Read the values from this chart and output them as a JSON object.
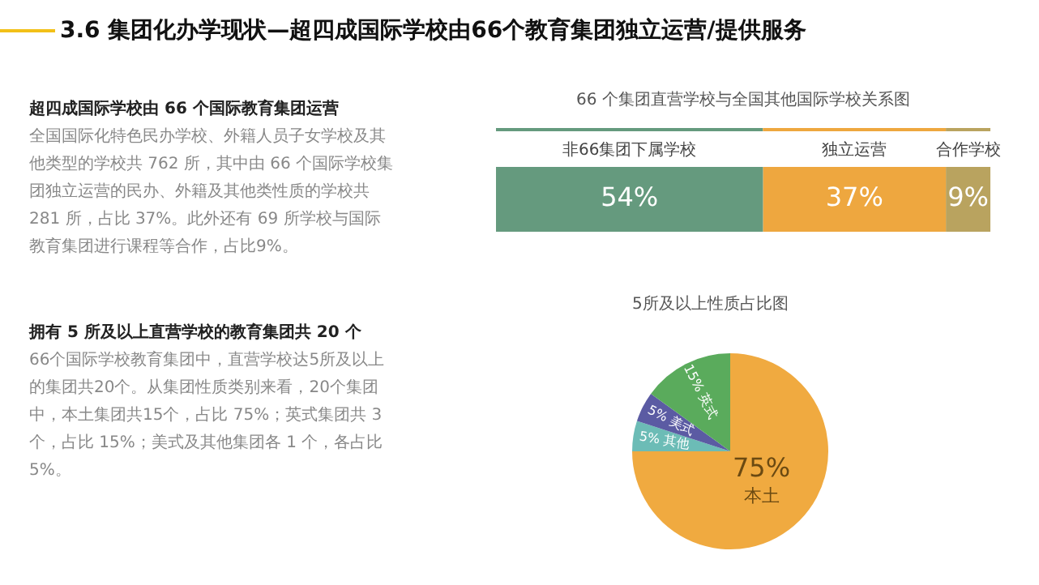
{
  "chart_data": [
    {
      "type": "other",
      "title": "3.6 集团化办学现状—超四成国际学校由66个教育集团独立运营/提供服务"
    },
    {
      "type": "other",
      "title": "超四成国际学校由 66 个国际教育集团运营",
      "annotations": [
        "全国国际化特色民办学校、外籍人员子女学校及其他类型的学校共 762 所，其中由 66 个国际学校集团独立运营的民办、外籍及其他类性质的学校共 281 所，占比 37%。此外还有 69 所学校与国际教育集团进行课程等合作，占比9%。"
      ]
    },
    {
      "type": "bar",
      "title": "66 个集团直营学校与全国其他国际学校关系图",
      "orientation": "horizontal",
      "stacked": true,
      "tick_labels": false,
      "legend": "top",
      "categories": [
        null
      ],
      "series": [
        {
          "name": "非66集团下属学校",
          "color": "#659a7e",
          "values": [
            54
          ],
          "value_labels": [
            "54%"
          ]
        },
        {
          "name": "独立运营",
          "color": "#eea73f",
          "values": [
            37
          ],
          "value_labels": [
            "37%"
          ]
        },
        {
          "name": "合作学校",
          "color": "#b9a35f",
          "values": [
            9
          ],
          "value_labels": [
            "9%"
          ]
        }
      ]
    },
    {
      "type": "other",
      "title": "拥有 5 所及以上直营学校的教育集团共 20 个",
      "annotations": [
        "66个国际学校教育集团中，直营学校达5所及以上的集团共20个。从集团性质类别来看，20个集团中，本土集团共15个，占比 75%；英式集团共 3 个，占比 15%；美式及其他集团各 1 个，各占比 5%。"
      ]
    },
    {
      "type": "pie",
      "title": "5所及以上性质占比图",
      "legend": false,
      "categories": [
        "本土",
        "其他",
        "美式",
        "英式"
      ],
      "values": [
        75,
        5,
        5,
        15
      ],
      "colors": [
        "#f0aa40",
        "#6cbcb6",
        "#5b5ba3",
        "#5aab5c"
      ],
      "value_labels": [
        "75%",
        "5%",
        "5%",
        "15%"
      ]
    }
  ]
}
